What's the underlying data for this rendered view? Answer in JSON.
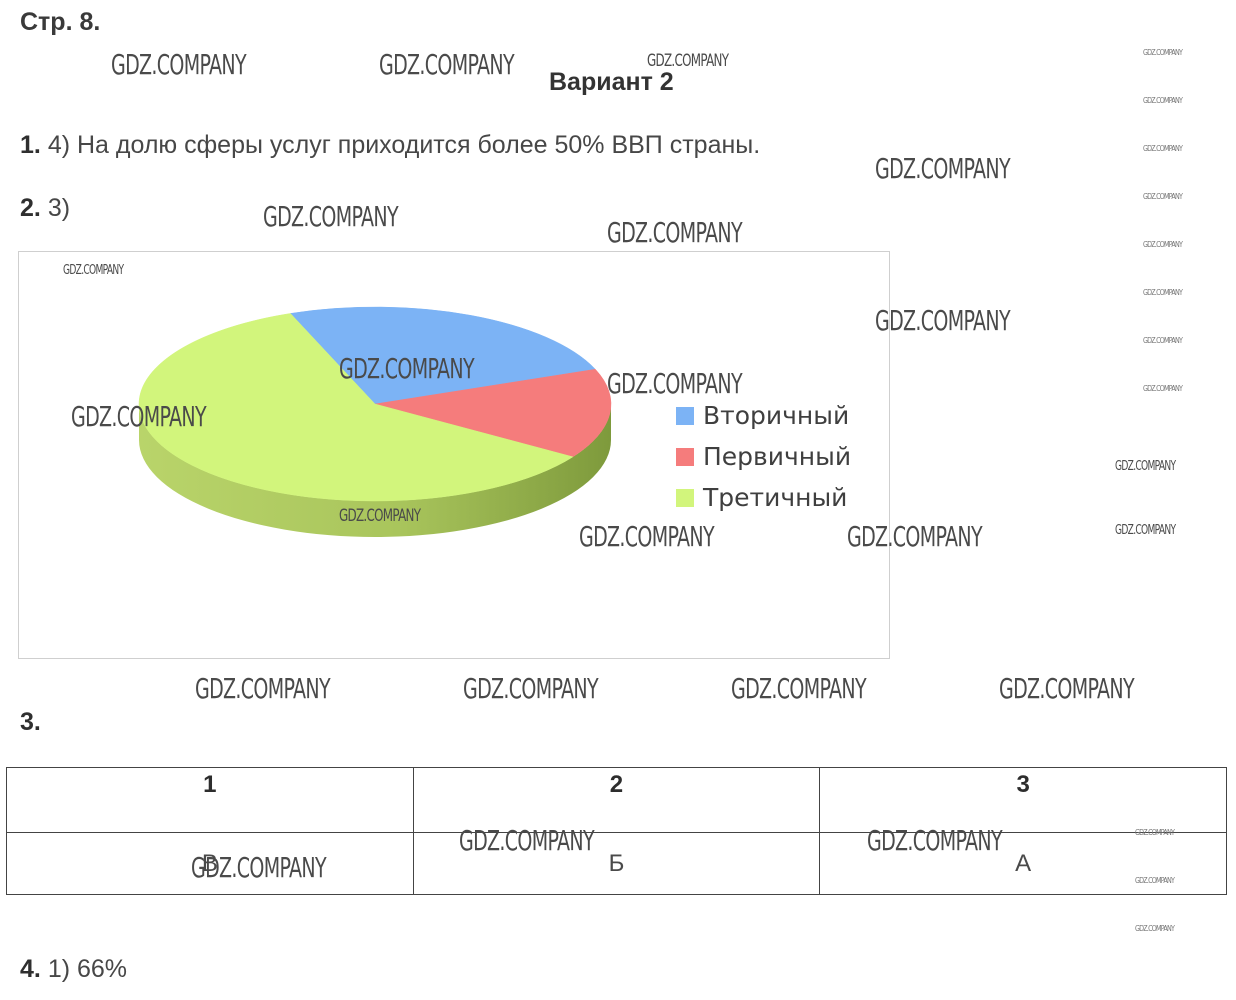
{
  "header": {
    "page": "Стр. 8.",
    "variant": "Вариант 2"
  },
  "items": [
    {
      "num": "1.",
      "text": "4) На долю сферы услуг приходится более 50% ВВП страны."
    },
    {
      "num": "2.",
      "text": "3)"
    },
    {
      "num": "3.",
      "text": ""
    },
    {
      "num": "4.",
      "text": "1) 66%"
    }
  ],
  "chart_data": {
    "type": "pie",
    "style": "3d",
    "legend_position": "right",
    "slices": [
      {
        "label": "Вторичный",
        "value": 25,
        "color": "#7cb3f5"
      },
      {
        "label": "Первичный",
        "value": 15,
        "color": "#f57c7c"
      },
      {
        "label": "Третичный",
        "value": 60,
        "color": "#d2f57c"
      }
    ]
  },
  "table": {
    "headers": [
      "1",
      "2",
      "3"
    ],
    "values": [
      "В",
      "Б",
      "А"
    ]
  },
  "watermark": "GDZ.COMPANY"
}
